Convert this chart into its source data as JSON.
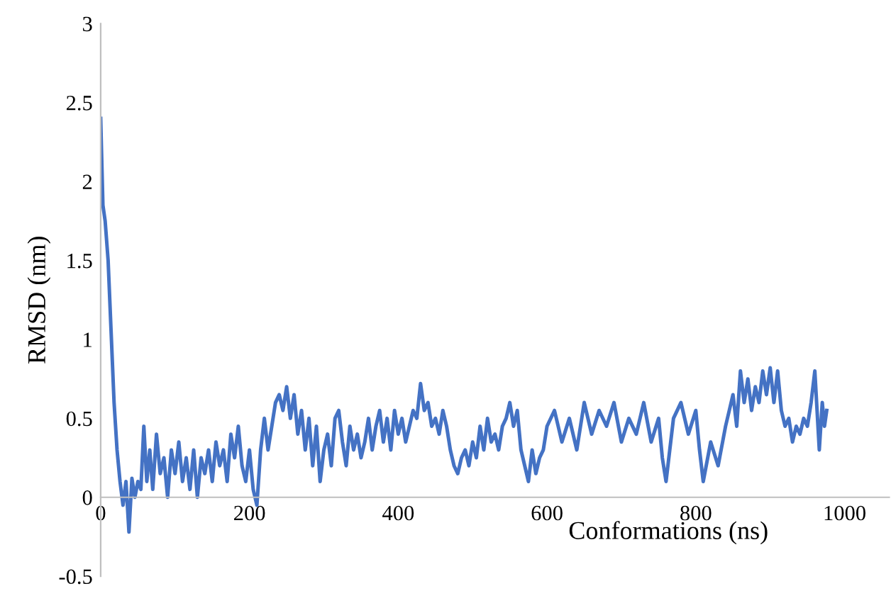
{
  "chart_data": {
    "type": "line",
    "xlabel": "Conformations (ns)",
    "ylabel": "RMSD (nm)",
    "xlim": [
      0,
      1060
    ],
    "ylim": [
      -0.5,
      3
    ],
    "xticks": [
      0,
      200,
      400,
      600,
      800,
      1000
    ],
    "yticks": [
      -0.5,
      0,
      0.5,
      1,
      1.5,
      2,
      2.5,
      3
    ],
    "grid": false,
    "marker": "none",
    "line_style": "solid",
    "series": [
      {
        "color": "#4472c4",
        "x": [
          0,
          3,
          6,
          10,
          14,
          18,
          22,
          26,
          30,
          34,
          38,
          42,
          46,
          50,
          54,
          58,
          62,
          66,
          70,
          75,
          80,
          85,
          90,
          95,
          100,
          105,
          110,
          115,
          120,
          125,
          130,
          135,
          140,
          145,
          150,
          155,
          160,
          165,
          170,
          175,
          180,
          185,
          190,
          195,
          200,
          205,
          210,
          215,
          220,
          225,
          230,
          235,
          240,
          245,
          250,
          255,
          260,
          265,
          270,
          275,
          280,
          285,
          290,
          295,
          300,
          305,
          310,
          315,
          320,
          325,
          330,
          335,
          340,
          345,
          350,
          355,
          360,
          365,
          370,
          375,
          380,
          385,
          390,
          395,
          400,
          405,
          410,
          415,
          420,
          425,
          430,
          435,
          440,
          445,
          450,
          455,
          460,
          465,
          470,
          475,
          480,
          485,
          490,
          495,
          500,
          505,
          510,
          515,
          520,
          525,
          530,
          535,
          540,
          545,
          550,
          555,
          560,
          565,
          570,
          575,
          580,
          585,
          590,
          595,
          600,
          610,
          620,
          630,
          640,
          650,
          660,
          670,
          680,
          690,
          700,
          710,
          720,
          730,
          740,
          750,
          755,
          760,
          765,
          770,
          780,
          790,
          800,
          805,
          810,
          820,
          830,
          840,
          845,
          850,
          855,
          860,
          865,
          870,
          875,
          880,
          885,
          890,
          895,
          900,
          905,
          910,
          915,
          920,
          925,
          930,
          935,
          940,
          945,
          950,
          955,
          960,
          963,
          966,
          970,
          973,
          976
        ],
        "values": [
          2.4,
          1.85,
          1.75,
          1.5,
          1.05,
          0.6,
          0.3,
          0.1,
          -0.05,
          0.1,
          -0.22,
          0.12,
          0.0,
          0.1,
          0.05,
          0.45,
          0.1,
          0.3,
          0.05,
          0.4,
          0.15,
          0.25,
          0.0,
          0.3,
          0.15,
          0.35,
          0.1,
          0.25,
          0.05,
          0.3,
          0.0,
          0.25,
          0.15,
          0.3,
          0.1,
          0.35,
          0.2,
          0.3,
          0.1,
          0.4,
          0.25,
          0.45,
          0.2,
          0.1,
          0.3,
          0.05,
          -0.05,
          0.3,
          0.5,
          0.3,
          0.45,
          0.6,
          0.65,
          0.55,
          0.7,
          0.5,
          0.65,
          0.4,
          0.55,
          0.3,
          0.5,
          0.2,
          0.45,
          0.1,
          0.3,
          0.4,
          0.2,
          0.5,
          0.55,
          0.35,
          0.2,
          0.45,
          0.3,
          0.4,
          0.25,
          0.35,
          0.5,
          0.3,
          0.45,
          0.55,
          0.35,
          0.5,
          0.3,
          0.55,
          0.4,
          0.5,
          0.35,
          0.45,
          0.55,
          0.5,
          0.72,
          0.55,
          0.6,
          0.45,
          0.5,
          0.4,
          0.55,
          0.45,
          0.3,
          0.2,
          0.15,
          0.25,
          0.3,
          0.2,
          0.35,
          0.25,
          0.45,
          0.3,
          0.5,
          0.35,
          0.4,
          0.3,
          0.45,
          0.5,
          0.6,
          0.45,
          0.55,
          0.3,
          0.2,
          0.1,
          0.3,
          0.15,
          0.25,
          0.3,
          0.45,
          0.55,
          0.35,
          0.5,
          0.3,
          0.6,
          0.4,
          0.55,
          0.45,
          0.6,
          0.35,
          0.5,
          0.4,
          0.6,
          0.35,
          0.5,
          0.25,
          0.1,
          0.3,
          0.5,
          0.6,
          0.4,
          0.55,
          0.3,
          0.1,
          0.35,
          0.2,
          0.45,
          0.55,
          0.65,
          0.45,
          0.8,
          0.6,
          0.75,
          0.55,
          0.7,
          0.6,
          0.8,
          0.65,
          0.82,
          0.6,
          0.8,
          0.55,
          0.45,
          0.5,
          0.35,
          0.45,
          0.4,
          0.5,
          0.45,
          0.6,
          0.8,
          0.55,
          0.3,
          0.6,
          0.45,
          0.55
        ]
      }
    ]
  }
}
